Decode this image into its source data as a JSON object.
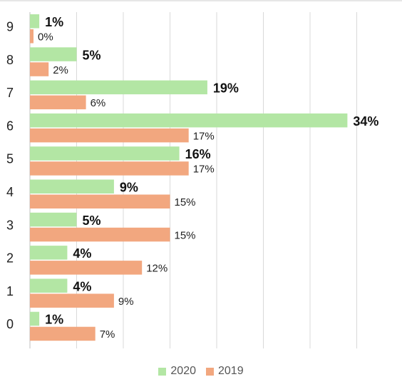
{
  "chart_data": {
    "type": "bar",
    "orientation": "horizontal",
    "categories": [
      "0",
      "1",
      "2",
      "3",
      "4",
      "5",
      "6",
      "7",
      "8",
      "9"
    ],
    "series": [
      {
        "name": "2020",
        "color": "#b3e6a4",
        "values": [
          1,
          4,
          4,
          5,
          9,
          16,
          34,
          19,
          5,
          1
        ],
        "labels": [
          "1%",
          "4%",
          "4%",
          "5%",
          "9%",
          "16%",
          "34%",
          "19%",
          "5%",
          "1%"
        ],
        "label_style": "bold"
      },
      {
        "name": "2019",
        "color": "#f2a77f",
        "values": [
          7,
          9,
          12,
          15,
          15,
          17,
          17,
          6,
          2,
          0
        ],
        "labels": [
          "7%",
          "9%",
          "12%",
          "15%",
          "15%",
          "17%",
          "17%",
          "6%",
          "2%",
          "0%"
        ],
        "label_style": "normal"
      }
    ],
    "xlim": [
      0,
      35
    ],
    "grid": true,
    "legend_position": "bottom"
  }
}
